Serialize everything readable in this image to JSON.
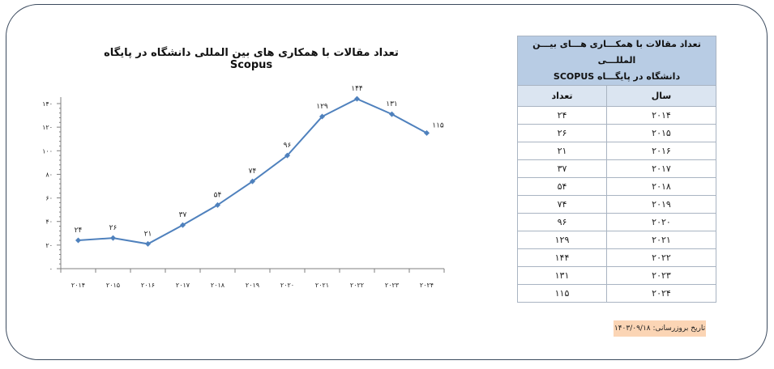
{
  "chart_data": {
    "type": "line",
    "title": "تعداد مقالات با همکاری های بین المللی دانشگاه در پایگاه Scopus",
    "categories": [
      "۲۰۱۴",
      "۲۰۱۵",
      "۲۰۱۶",
      "۲۰۱۷",
      "۲۰۱۸",
      "۲۰۱۹",
      "۲۰۲۰",
      "۲۰۲۱",
      "۲۰۲۲",
      "۲۰۲۳",
      "۲۰۲۴"
    ],
    "values": [
      24,
      26,
      21,
      37,
      54,
      74,
      96,
      129,
      144,
      131,
      115
    ],
    "value_labels": [
      "۲۴",
      "۲۶",
      "۲۱",
      "۳۷",
      "۵۴",
      "۷۴",
      "۹۶",
      "۱۲۹",
      "۱۴۴",
      "۱۳۱",
      "۱۱۵"
    ],
    "ylim": [
      0,
      140
    ],
    "yticks": [
      0,
      20,
      40,
      60,
      80,
      100,
      120,
      140
    ],
    "ytick_labels": [
      "۰",
      "۲۰",
      "۴۰",
      "۶۰",
      "۸۰",
      "۱۰۰",
      "۱۲۰",
      "۱۴۰"
    ],
    "xlabel": "",
    "ylabel": "",
    "grid": false,
    "legend": "none",
    "line_color": "#4f81bd"
  },
  "table": {
    "title_line1": "تعداد مقالات با همکـــاری هـــای بیـــن المللـــی",
    "title_line2": "دانشگاه در پایگـــاه SCOPUS",
    "headers": {
      "year": "سال",
      "count": "تعداد"
    },
    "rows": [
      {
        "year": "۲۰۱۴",
        "count": "۲۴"
      },
      {
        "year": "۲۰۱۵",
        "count": "۲۶"
      },
      {
        "year": "۲۰۱۶",
        "count": "۲۱"
      },
      {
        "year": "۲۰۱۷",
        "count": "۳۷"
      },
      {
        "year": "۲۰۱۸",
        "count": "۵۴"
      },
      {
        "year": "۲۰۱۹",
        "count": "۷۴"
      },
      {
        "year": "۲۰۲۰",
        "count": "۹۶"
      },
      {
        "year": "۲۰۲۱",
        "count": "۱۲۹"
      },
      {
        "year": "۲۰۲۲",
        "count": "۱۴۴"
      },
      {
        "year": "۲۰۲۳",
        "count": "۱۳۱"
      },
      {
        "year": "۲۰۲۴",
        "count": "۱۱۵"
      }
    ]
  },
  "update": {
    "text": "تاریخ بروزرسانی: ۱۴۰۳/۰۹/۱۸"
  },
  "colors": {
    "header_bg": "#b8cce4",
    "subheader_bg": "#dbe5f1",
    "update_bg": "#fbd5b5"
  }
}
